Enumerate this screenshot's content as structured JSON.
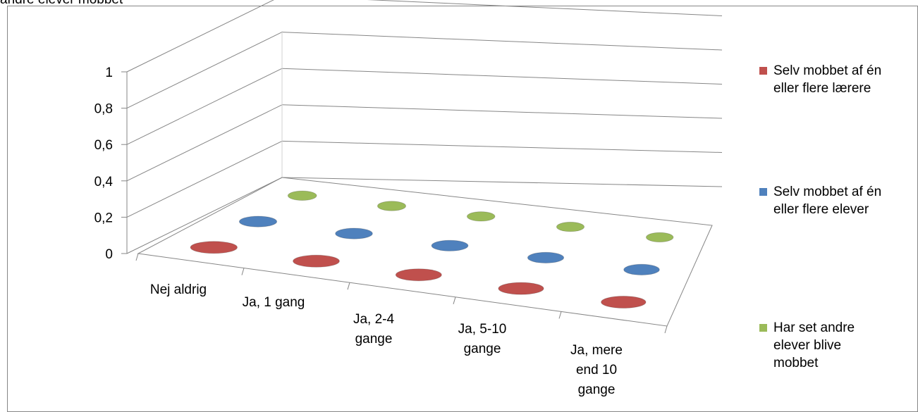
{
  "top_text": "andre elever mobbet",
  "chart_data": {
    "type": "3d-scatter",
    "categories": [
      "Nej aldrig",
      "Ja, 1 gang",
      "Ja, 2-4 gange",
      "Ja, 5-10 gange",
      "Ja, mere end 10 gange"
    ],
    "category_lines": [
      [
        "Nej aldrig"
      ],
      [
        "Ja, 1 gang"
      ],
      [
        "Ja, 2-4",
        "gange"
      ],
      [
        "Ja, 5-10",
        "gange"
      ],
      [
        "Ja, mere",
        "end 10",
        "gange"
      ]
    ],
    "y_ticks": [
      "0",
      "0,2",
      "0,4",
      "0,6",
      "0,8",
      "1"
    ],
    "ylim": [
      0,
      1
    ],
    "series": [
      {
        "name": "Selv mobbet af én eller flere lærere",
        "name_lines": [
          "Selv mobbet af én",
          "eller flere lærere"
        ],
        "color": "#c0504d",
        "values": [
          0,
          0,
          0,
          0,
          0
        ]
      },
      {
        "name": "Selv mobbet af én eller flere elever",
        "name_lines": [
          "Selv mobbet af én",
          "eller flere elever"
        ],
        "color": "#4f81bd",
        "values": [
          0,
          0,
          0,
          0,
          0
        ]
      },
      {
        "name": "Har set andre elever blive mobbet",
        "name_lines": [
          "Har set andre",
          "elever blive",
          "mobbet"
        ],
        "color": "#9bbb59",
        "values": [
          0,
          0,
          0,
          0,
          0
        ]
      }
    ],
    "grid": true,
    "legend": "right"
  }
}
